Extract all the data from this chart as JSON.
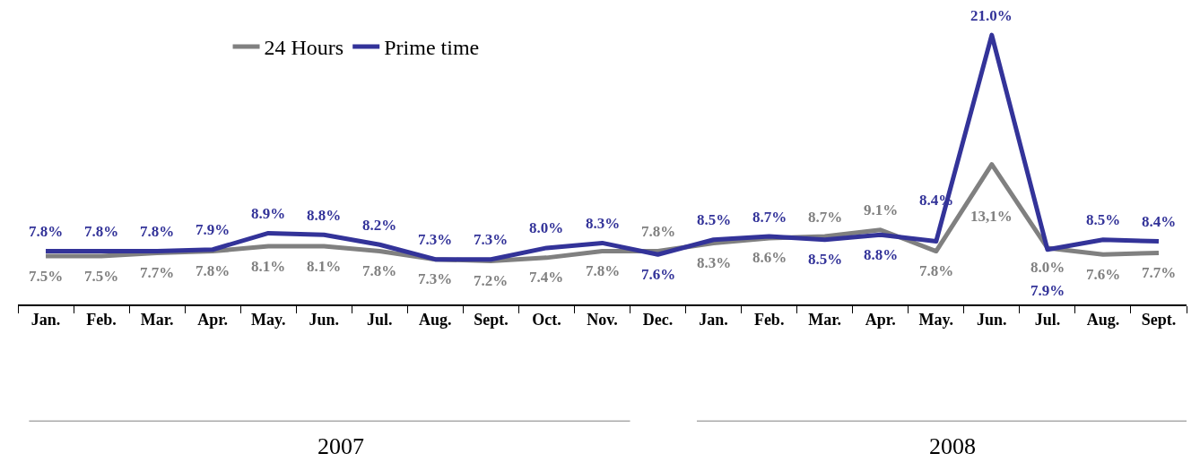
{
  "chart_data": {
    "type": "line",
    "categories": [
      "Jan.",
      "Feb.",
      "Mar.",
      "Apr.",
      "May.",
      "Jun.",
      "Jul.",
      "Aug.",
      "Sept.",
      "Oct.",
      "Nov.",
      "Dec.",
      "Jan.",
      "Feb.",
      "Mar.",
      "Apr.",
      "May.",
      "Jun.",
      "Jul.",
      "Aug.",
      "Sept."
    ],
    "series": [
      {
        "name": "24 Hours",
        "color": "#808080",
        "values": [
          7.5,
          7.5,
          7.7,
          7.8,
          8.1,
          8.1,
          7.8,
          7.3,
          7.2,
          7.4,
          7.8,
          7.8,
          8.3,
          8.6,
          8.7,
          9.1,
          7.8,
          13.1,
          8.0,
          7.6,
          7.7
        ],
        "value_labels": [
          "7.5%",
          "7.5%",
          "7.7%",
          "7.8%",
          "8.1%",
          "8.1%",
          "7.8%",
          "7.3%",
          "7.2%",
          "7.4%",
          "7.8%",
          "7.8%",
          "8.3%",
          "8.6%",
          "8.7%",
          "9.1%",
          "7.8%",
          "13,1%",
          "8.0%",
          "7.6%",
          "7.7%"
        ]
      },
      {
        "name": "Prime time",
        "color": "#333399",
        "values": [
          7.8,
          7.8,
          7.8,
          7.9,
          8.9,
          8.8,
          8.2,
          7.3,
          7.3,
          8.0,
          8.3,
          7.6,
          8.5,
          8.7,
          8.5,
          8.8,
          8.4,
          21.0,
          7.9,
          8.5,
          8.4
        ],
        "value_labels": [
          "7.8%",
          "7.8%",
          "7.8%",
          "7.9%",
          "8.9%",
          "8.8%",
          "8.2%",
          "7.3%",
          "7.3%",
          "8.0%",
          "8.3%",
          "7.6%",
          "8.5%",
          "8.7%",
          "8.5%",
          "8.8%",
          "8.4%",
          "21.0%",
          "7.9%",
          "8.5%",
          "8.4%"
        ]
      }
    ],
    "annotations": [
      "2007",
      "2008"
    ],
    "legend": "top left",
    "marker": "none",
    "line_style": "solid"
  }
}
